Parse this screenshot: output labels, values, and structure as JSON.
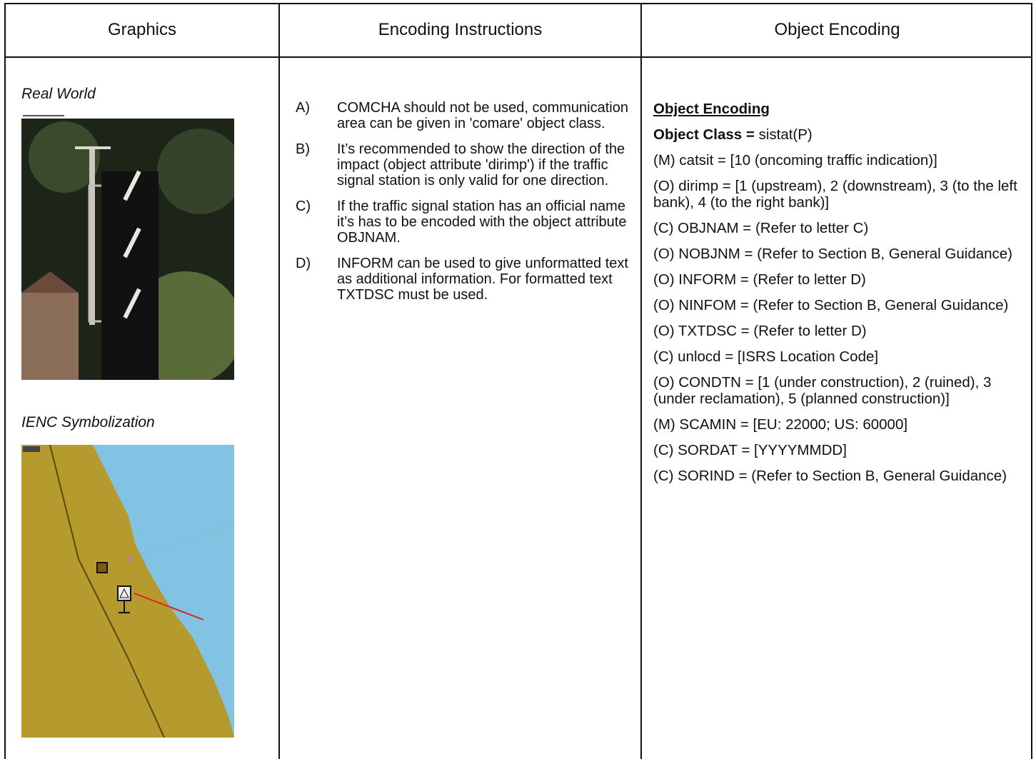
{
  "table": {
    "headers": [
      "Graphics",
      "Encoding Instructions",
      "Object Encoding"
    ]
  },
  "graphics": {
    "real_world_label": "Real World",
    "symbolization_label": "IENC Symbolization"
  },
  "instructions": [
    {
      "letter": "A)",
      "text": "COMCHA should not be used, communication area can be given in 'comare' object class."
    },
    {
      "letter": "B)",
      "text": "It’s recommended to show the direction of the impact (object attribute 'dirimp') if the traffic signal station is only valid for one direction."
    },
    {
      "letter": "C)",
      "text": "If the traffic signal station has an official name it’s has to be encoded with the object attribute OBJNAM."
    },
    {
      "letter": "D)",
      "text": "INFORM can be used to give unformatted text as additional information. For formatted text TXTDSC must be used."
    }
  ],
  "object_encoding": {
    "heading": "Object Encoding",
    "class_label": "Object Class =",
    "class_value": "sistat(P)",
    "attributes": [
      "(M) catsit = [10 (oncoming traffic indication)]",
      "(O) dirimp = [1 (upstream), 2 (downstream), 3 (to the left bank), 4 (to the right bank)]",
      "(C) OBJNAM = (Refer to letter C)",
      "(O) NOBJNM = (Refer to Section B, General Guidance)",
      "(O) INFORM = (Refer to letter D)",
      "(O) NINFOM = (Refer to Section B, General Guidance)",
      "(O) TXTDSC = (Refer to letter D)",
      "(C) unlocd = [ISRS Location Code]",
      "(O) CONDTN = [1 (under construction), 2 (ruined), 3 (under reclamation), 5 (planned construction)]",
      "(M) SCAMIN = [EU: 22000; US: 60000]",
      "(C) SORDAT = [YYYYMMDD]",
      "(C) SORIND = (Refer to Section B, General Guidance)"
    ]
  }
}
